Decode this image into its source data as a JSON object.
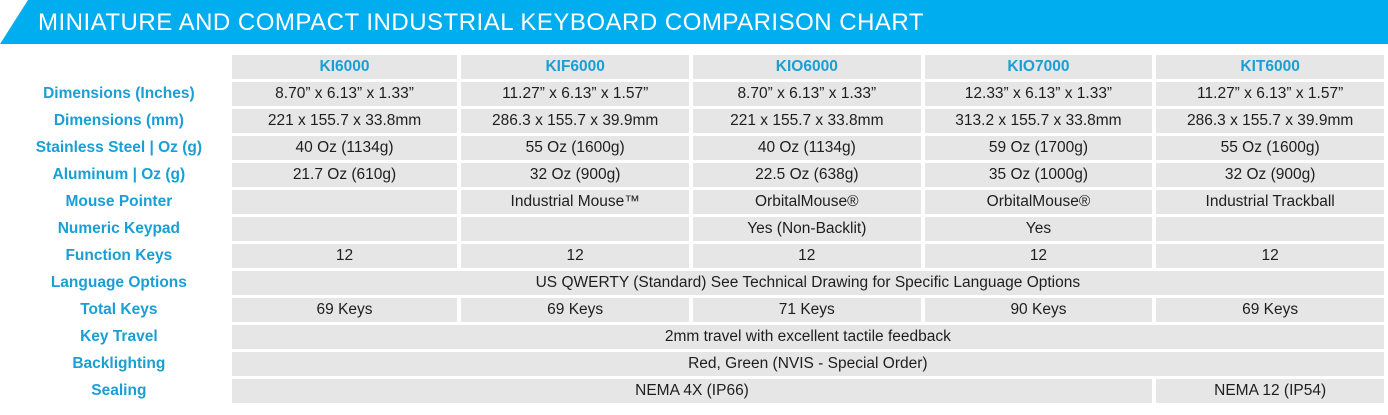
{
  "title": "MINIATURE AND COMPACT INDUSTRIAL KEYBOARD COMPARISON CHART",
  "colors": {
    "accent": "#1a9fd4",
    "banner": "#00aeef",
    "cell": "#e6e6e6"
  },
  "columns": [
    "KI6000",
    "KIF6000",
    "KIO6000",
    "KIO7000",
    "KIT6000"
  ],
  "rows": {
    "dimensions_in": {
      "label": "Dimensions (Inches)",
      "values": [
        "8.70” x 6.13” x 1.33”",
        "11.27” x 6.13” x 1.57”",
        "8.70” x 6.13” x 1.33”",
        "12.33” x 6.13” x 1.33”",
        "11.27” x 6.13” x 1.57”"
      ]
    },
    "dimensions_mm": {
      "label": "Dimensions (mm)",
      "values": [
        "221 x 155.7 x 33.8mm",
        "286.3 x 155.7 x 39.9mm",
        "221 x 155.7 x 33.8mm",
        "313.2 x 155.7 x 33.8mm",
        "286.3 x 155.7 x 39.9mm"
      ]
    },
    "stainless": {
      "label": "Stainless Steel | Oz (g)",
      "values": [
        "40 Oz (1134g)",
        "55 Oz (1600g)",
        "40 Oz (1134g)",
        "59 Oz (1700g)",
        "55 Oz (1600g)"
      ]
    },
    "aluminum": {
      "label": "Aluminum | Oz (g)",
      "values": [
        "21.7 Oz (610g)",
        "32 Oz (900g)",
        "22.5 Oz (638g)",
        "35 Oz (1000g)",
        "32 Oz (900g)"
      ]
    },
    "mouse_pointer": {
      "label": "Mouse Pointer",
      "values": [
        "",
        "Industrial Mouse™",
        "OrbitalMouse®",
        "OrbitalMouse®",
        "Industrial Trackball"
      ]
    },
    "numeric_keypad": {
      "label": "Numeric Keypad",
      "values": [
        "",
        "",
        "Yes (Non-Backlit)",
        "Yes",
        ""
      ]
    },
    "function_keys": {
      "label": "Function Keys",
      "values": [
        "12",
        "12",
        "12",
        "12",
        "12"
      ]
    },
    "language": {
      "label": "Language Options",
      "value": "US QWERTY (Standard) See Technical Drawing for Specific Language Options"
    },
    "total_keys": {
      "label": "Total  Keys",
      "values": [
        "69 Keys",
        "69 Keys",
        "71 Keys",
        "90 Keys",
        "69 Keys"
      ]
    },
    "key_travel": {
      "label": "Key Travel",
      "value": "2mm travel with excellent tactile feedback"
    },
    "backlighting": {
      "label": "Backlighting",
      "value": "Red, Green (NVIS - Special Order)"
    },
    "sealing": {
      "label": "Sealing",
      "value_span": "NEMA 4X (IP66)",
      "value_last": "NEMA 12 (IP54)"
    }
  }
}
